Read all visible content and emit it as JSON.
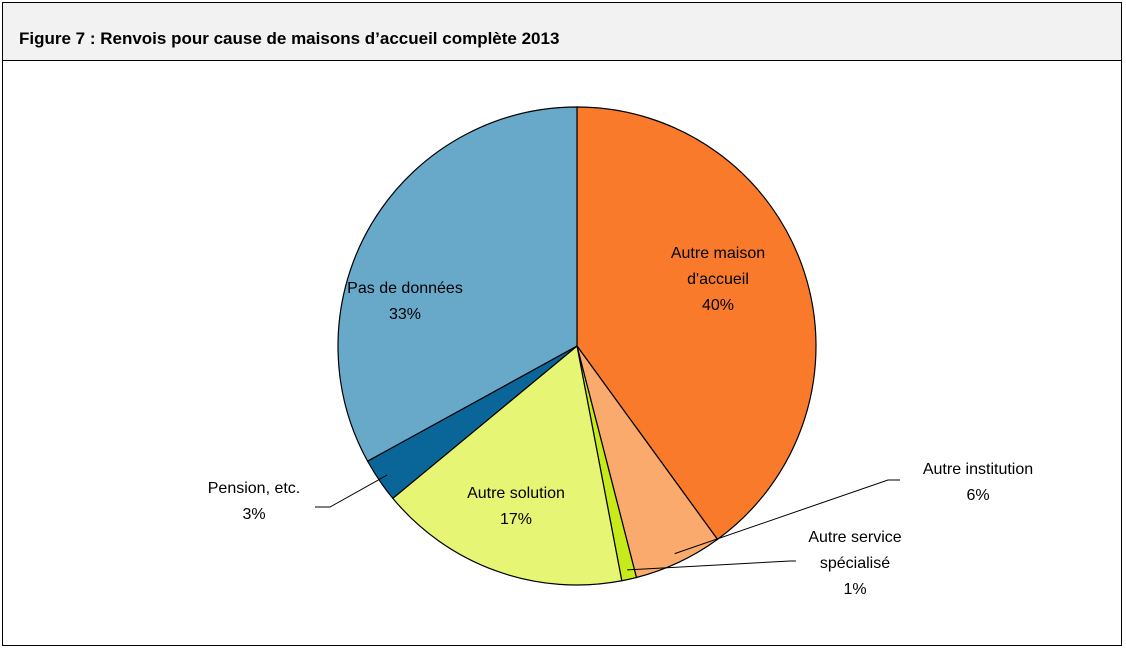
{
  "figure": {
    "title": "Figure 7 : Renvois pour cause de maisons d’accueil complète 2013"
  },
  "chart_data": {
    "type": "pie",
    "title": "",
    "start_angle_deg": 0,
    "direction": "clockwise",
    "legend": "none",
    "slices": [
      {
        "label_lines": [
          "Autre maison",
          "d'accueil"
        ],
        "pct_text": "40%",
        "value": 40,
        "color": "#fa7a2c"
      },
      {
        "label_lines": [
          "Autre institution"
        ],
        "pct_text": "6%",
        "value": 6,
        "color": "#fbaa6e"
      },
      {
        "label_lines": [
          "Autre service",
          "spécialisé"
        ],
        "pct_text": "1%",
        "value": 1,
        "color": "#c6ea1a"
      },
      {
        "label_lines": [
          "Autre solution"
        ],
        "pct_text": "17%",
        "value": 17,
        "color": "#e6f573"
      },
      {
        "label_lines": [
          "Pension, etc."
        ],
        "pct_text": "3%",
        "value": 3,
        "color": "#0a6699"
      },
      {
        "label_lines": [
          "Pas de données"
        ],
        "pct_text": "33%",
        "value": 33,
        "color": "#68a9c9"
      }
    ]
  }
}
